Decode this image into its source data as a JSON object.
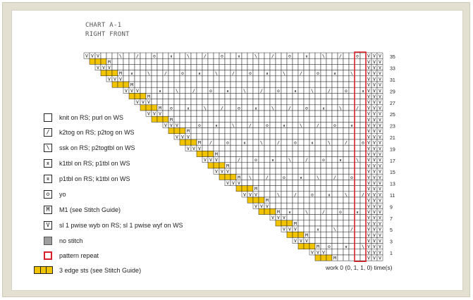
{
  "header": {
    "line1": "CHART A-1",
    "line2": "RIGHT FRONT"
  },
  "legend": [
    {
      "symbol": "blank",
      "glyph": "",
      "label": "knit on RS; purl on WS"
    },
    {
      "symbol": "k2tog",
      "glyph": "/",
      "label": "k2tog on RS; p2tog on WS"
    },
    {
      "symbol": "ssk",
      "glyph": "\\",
      "label": "ssk on RS; p2togtbl on WS"
    },
    {
      "symbol": "k1tbl",
      "glyph": "ᴙ",
      "label": "k1tbl on RS; p1tbl on WS"
    },
    {
      "symbol": "p1tbl",
      "glyph": "ᴙ",
      "label": "p1tbl on RS; k1tbl on WS"
    },
    {
      "symbol": "yo",
      "glyph": "o",
      "label": "yo"
    },
    {
      "symbol": "m1",
      "glyph": "M",
      "label": "M1 (see Stitch Guide)"
    },
    {
      "symbol": "sl1",
      "glyph": "V",
      "label": "sl 1 pwise wyb on RS; sl 1 pwise wyf on WS"
    },
    {
      "symbol": "no-stitch",
      "glyph": "",
      "label": "no stitch"
    },
    {
      "symbol": "pattern-repeat",
      "glyph": "",
      "label": "pattern repeat"
    },
    {
      "symbol": "edge-sts",
      "glyph": "",
      "label": "3 edge sts (see Stitch Guide)"
    }
  ],
  "row_numbers": [
    "35",
    "33",
    "31",
    "29",
    "27",
    "25",
    "23",
    "21",
    "19",
    "17",
    "15",
    "13",
    "11",
    "9",
    "7",
    "5",
    "3",
    "1"
  ],
  "repeat_note": "work 0 (0, 1, 1, 0) time(s)",
  "colors": {
    "edge_fill": "#f2c400",
    "repeat_box": "#d8202a",
    "grid_line": "#222222",
    "panel": "#e3e0d2"
  }
}
